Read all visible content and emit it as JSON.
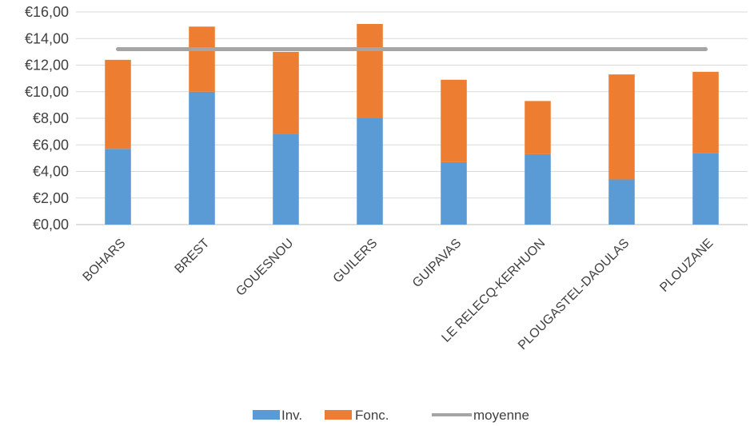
{
  "chart_data": {
    "type": "bar",
    "stacked": true,
    "categories": [
      "BOHARS",
      "BREST",
      "GOUESNOU",
      "GUILERS",
      "GUIPAVAS",
      "LE RELECQ-KERHUON",
      "PLOUGASTEL-DAOULAS",
      "PLOUZANE"
    ],
    "series": [
      {
        "name": "Inv.",
        "color": "#5b9bd5",
        "values": [
          5.7,
          10.0,
          6.8,
          8.0,
          4.7,
          5.3,
          3.4,
          5.4
        ]
      },
      {
        "name": "Fonc.",
        "color": "#ed7d31",
        "values": [
          6.7,
          4.9,
          6.2,
          7.1,
          6.2,
          4.0,
          7.9,
          6.1
        ]
      }
    ],
    "line_series": {
      "name": "moyenne",
      "color": "#a5a5a5",
      "value": 13.2
    },
    "y_tick_labels": [
      "€0,00",
      "€2,00",
      "€4,00",
      "€6,00",
      "€8,00",
      "€10,00",
      "€12,00",
      "€14,00",
      "€16,00"
    ],
    "y_ticks": [
      0,
      2,
      4,
      6,
      8,
      10,
      12,
      14,
      16
    ],
    "ylim": [
      0,
      16
    ],
    "grid": true,
    "legend_position": "bottom",
    "title": "",
    "xlabel": "",
    "ylabel": ""
  }
}
